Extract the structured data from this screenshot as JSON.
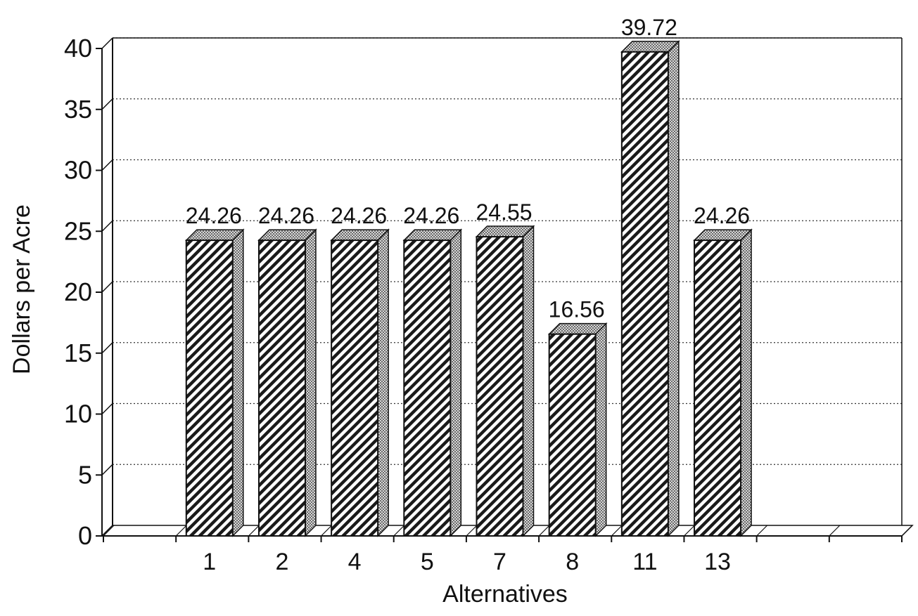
{
  "chart_data": {
    "type": "bar",
    "title": "",
    "xlabel": "Alternatives",
    "ylabel": "Dollars per Acre",
    "categories": [
      "1",
      "2",
      "4",
      "5",
      "7",
      "8",
      "11",
      "13"
    ],
    "values": [
      24.26,
      24.26,
      24.26,
      24.26,
      24.55,
      16.56,
      39.72,
      24.26
    ],
    "data_labels": [
      "24.26",
      "24.26",
      "24.26",
      "24.26",
      "24.55",
      "16.56",
      "39.72",
      "24.26"
    ],
    "ylim": [
      0,
      40
    ],
    "y_ticks": [
      "0",
      "5",
      "10",
      "15",
      "20",
      "25",
      "30",
      "35",
      "40"
    ],
    "grid": true,
    "legend": "none",
    "style": "3d-hatched",
    "colors": {
      "bar_front_fill": "#ffffff",
      "bar_hatch": "#1a1a1a",
      "bar_side": "#9a9a9a",
      "bar_top": "#b5b5b5",
      "axis": "#111111",
      "grid": "#333333"
    }
  }
}
